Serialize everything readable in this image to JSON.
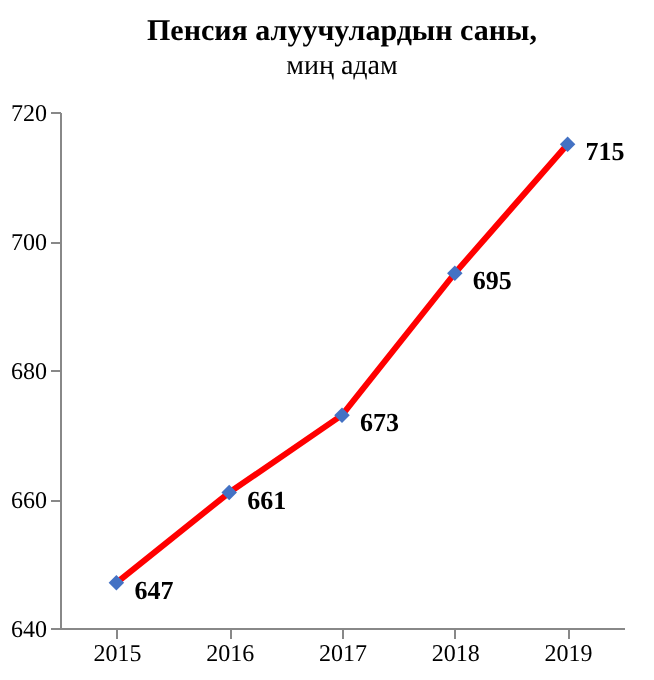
{
  "chart_data": {
    "type": "line",
    "title": "Пенсия алуучулардын саны,",
    "subtitle": "миң адам",
    "categories": [
      "2015",
      "2016",
      "2017",
      "2018",
      "2019"
    ],
    "series": [
      {
        "color": "#ff0000",
        "colors": [
          "#4472c4",
          "#4472c4",
          "#4472c4",
          "#4472c4",
          "#4472c4"
        ],
        "values": [
          647,
          661,
          673,
          695,
          715
        ]
      }
    ],
    "ylim": [
      640,
      720
    ],
    "yticks": [
      640,
      660,
      680,
      700,
      720
    ],
    "grid": false,
    "marker": "diamond",
    "line_style": "solid",
    "data_labels": true
  }
}
